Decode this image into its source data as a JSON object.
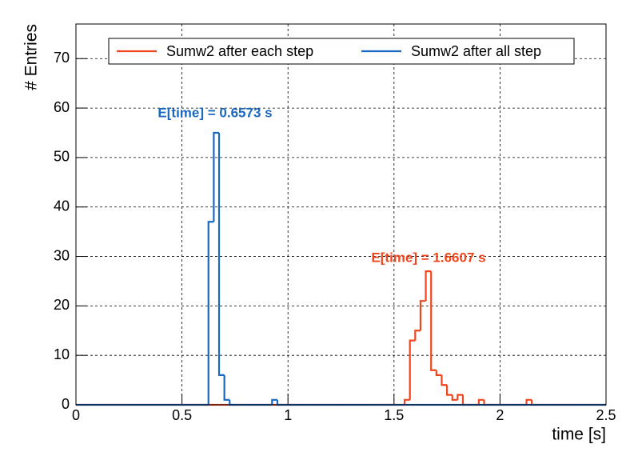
{
  "chart_data": {
    "type": "histogram",
    "xlabel": "time [s]",
    "ylabel": "# Entries",
    "xlim": [
      0,
      2.5
    ],
    "ylim": [
      0,
      77
    ],
    "xticks": [
      0,
      0.5,
      1,
      1.5,
      2,
      2.5
    ],
    "yticks": [
      0,
      10,
      20,
      30,
      40,
      50,
      60,
      70
    ],
    "grid": true,
    "legend": "top",
    "bins": [
      0,
      0.025,
      0.05,
      0.075,
      0.1,
      0.125,
      0.15,
      0.175,
      0.2,
      0.225,
      0.25,
      0.275,
      0.3,
      0.325,
      0.35,
      0.375,
      0.4,
      0.425,
      0.45,
      0.475,
      0.5,
      0.525,
      0.55,
      0.575,
      0.6,
      0.625,
      0.65,
      0.675,
      0.7,
      0.725,
      0.75,
      0.775,
      0.8,
      0.825,
      0.85,
      0.875,
      0.9,
      0.925,
      0.95,
      0.975,
      1,
      1.025,
      1.05,
      1.075,
      1.1,
      1.125,
      1.15,
      1.175,
      1.2,
      1.225,
      1.25,
      1.275,
      1.3,
      1.325,
      1.35,
      1.375,
      1.4,
      1.425,
      1.45,
      1.475,
      1.5,
      1.525,
      1.55,
      1.575,
      1.6,
      1.625,
      1.65,
      1.675,
      1.7,
      1.725,
      1.75,
      1.775,
      1.8,
      1.825,
      1.85,
      1.875,
      1.9,
      1.925,
      1.95,
      1.975,
      2,
      2.025,
      2.05,
      2.075,
      2.1,
      2.125,
      2.15,
      2.175,
      2.2,
      2.225,
      2.25,
      2.275,
      2.3,
      2.325,
      2.35,
      2.375,
      2.4,
      2.425,
      2.45,
      2.475,
      2.5
    ],
    "series": [
      {
        "name": "Sumw2 after each step",
        "color": "#f0461e",
        "values": [
          0,
          0,
          0,
          0,
          0,
          0,
          0,
          0,
          0,
          0,
          0,
          0,
          0,
          0,
          0,
          0,
          0,
          0,
          0,
          0,
          0,
          0,
          0,
          0,
          0,
          0,
          0,
          0,
          0,
          0,
          0,
          0,
          0,
          0,
          0,
          0,
          0,
          0,
          0,
          0,
          0,
          0,
          0,
          0,
          0,
          0,
          0,
          0,
          0,
          0,
          0,
          0,
          0,
          0,
          0,
          0,
          0,
          0,
          0,
          0,
          0,
          0,
          1,
          13,
          15,
          21,
          27,
          7,
          6,
          4,
          2,
          1,
          2,
          0,
          0,
          0,
          1,
          0,
          0,
          0,
          0,
          0,
          0,
          0,
          0,
          1,
          0,
          0,
          0,
          0,
          0,
          0,
          0,
          0,
          0,
          0,
          0,
          0,
          0,
          0
        ]
      },
      {
        "name": "Sumw2 after all step",
        "color": "#1a68c0",
        "values": [
          0,
          0,
          0,
          0,
          0,
          0,
          0,
          0,
          0,
          0,
          0,
          0,
          0,
          0,
          0,
          0,
          0,
          0,
          0,
          0,
          0,
          0,
          0,
          0,
          0,
          37,
          55,
          6,
          1,
          0,
          0,
          0,
          0,
          0,
          0,
          0,
          0,
          1,
          0,
          0,
          0,
          0,
          0,
          0,
          0,
          0,
          0,
          0,
          0,
          0,
          0,
          0,
          0,
          0,
          0,
          0,
          0,
          0,
          0,
          0,
          0,
          0,
          0,
          0,
          0,
          0,
          0,
          0,
          0,
          0,
          0,
          0,
          0,
          0,
          0,
          0,
          0,
          0,
          0,
          0,
          0,
          0,
          0,
          0,
          0,
          0,
          0,
          0,
          0,
          0,
          0,
          0,
          0,
          0,
          0,
          0,
          0,
          0,
          0,
          0
        ]
      }
    ],
    "annotations": [
      "E[time] = 1.6607 s",
      "E[time] = 0.6573 s"
    ]
  }
}
